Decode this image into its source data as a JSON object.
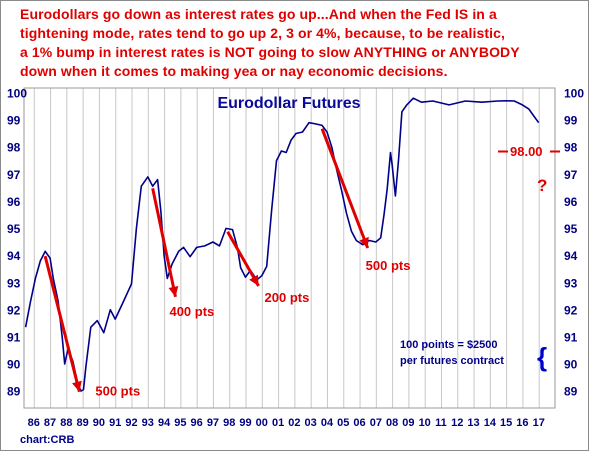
{
  "headline": [
    "Eurodollars go down as interest rates go up...And when the Fed IS in a",
    "tightening mode, rates tend to go up 2, 3 or 4%, because, to be realistic,",
    "a 1% bump in interest rates is NOT going to slow ANYTHING or ANYBODY",
    "down when it comes to making yea or nay economic decisions."
  ],
  "colors": {
    "headline": "#e00000",
    "series": "#00008b",
    "annotation": "#e00000",
    "grid": "#c8c8c8"
  },
  "chart_data": {
    "type": "line",
    "title": "Eurodollar Futures",
    "source": "chart:CRB",
    "xlabel": "",
    "ylabel": "",
    "xlim": [
      1985.4,
      2018.0
    ],
    "ylim": [
      88.4,
      100.2
    ],
    "grid": true,
    "x_tick_labels": [
      "86",
      "87",
      "88",
      "89",
      "90",
      "91",
      "92",
      "93",
      "94",
      "95",
      "96",
      "97",
      "98",
      "99",
      "00",
      "01",
      "02",
      "03",
      "04",
      "05",
      "06",
      "07",
      "08",
      "09",
      "10",
      "11",
      "12",
      "13",
      "14",
      "15",
      "16",
      "17"
    ],
    "x_tick_years": [
      1986,
      1987,
      1988,
      1989,
      1990,
      1991,
      1992,
      1993,
      1994,
      1995,
      1996,
      1997,
      1998,
      1999,
      2000,
      2001,
      2002,
      2003,
      2004,
      2005,
      2006,
      2007,
      2008,
      2009,
      2010,
      2011,
      2012,
      2013,
      2014,
      2015,
      2016,
      2017
    ],
    "y_ticks": [
      89,
      90,
      91,
      92,
      93,
      94,
      95,
      96,
      97,
      98,
      99,
      100
    ],
    "series": [
      {
        "x": [
          1985.5,
          1985.8,
          1986.1,
          1986.4,
          1986.7,
          1987.0,
          1987.2,
          1987.5,
          1987.75,
          1987.9,
          1988.1,
          1988.4,
          1988.7,
          1988.9,
          1989.05,
          1989.2,
          1989.5,
          1989.9,
          1990.3,
          1990.7,
          1991.0,
          1991.5,
          1992.0,
          1992.3,
          1992.6,
          1993.0,
          1993.3,
          1993.6,
          1993.8,
          1994.0,
          1994.2,
          1994.5,
          1994.9,
          1995.2,
          1995.6,
          1996.0,
          1996.5,
          1997.0,
          1997.4,
          1997.8,
          1998.2,
          1998.5,
          1998.7,
          1999.0,
          1999.3,
          1999.7,
          2000.0,
          2000.3,
          2000.6,
          2000.9,
          2001.2,
          2001.5,
          2001.8,
          2002.1,
          2002.5,
          2002.9,
          2003.3,
          2003.7,
          2004.0,
          2004.3,
          2004.6,
          2004.9,
          2005.2,
          2005.5,
          2005.8,
          2006.2,
          2006.6,
          2007.0,
          2007.3,
          2007.5,
          2007.7,
          2007.9,
          2008.0,
          2008.2,
          2008.4,
          2008.6,
          2008.9,
          2009.3,
          2009.8,
          2010.5,
          2011.5,
          2012.5,
          2013.5,
          2014.5,
          2015.0,
          2015.5,
          2016.0,
          2016.4,
          2016.8,
          2017.0
        ],
        "y": [
          91.4,
          92.3,
          93.2,
          93.8,
          94.2,
          93.9,
          93.2,
          92.3,
          91.0,
          90.0,
          90.6,
          90.1,
          89.3,
          89.0,
          89.1,
          89.9,
          91.4,
          91.6,
          91.2,
          92.0,
          91.7,
          92.3,
          93.0,
          95.0,
          96.6,
          96.9,
          96.6,
          96.8,
          95.7,
          94.0,
          93.2,
          93.7,
          94.2,
          94.3,
          94.0,
          94.3,
          94.4,
          94.5,
          94.4,
          95.0,
          95.0,
          94.3,
          93.6,
          93.2,
          93.5,
          93.1,
          93.3,
          93.6,
          95.7,
          97.5,
          97.9,
          97.8,
          98.3,
          98.5,
          98.6,
          98.9,
          98.9,
          98.8,
          98.6,
          98.0,
          97.2,
          96.4,
          95.6,
          94.9,
          94.6,
          94.4,
          94.6,
          94.5,
          94.7,
          95.5,
          96.5,
          97.8,
          97.4,
          96.2,
          97.6,
          99.3,
          99.6,
          99.8,
          99.7,
          99.7,
          99.6,
          99.7,
          99.7,
          99.7,
          99.75,
          99.7,
          99.6,
          99.4,
          99.1,
          98.9
        ]
      }
    ],
    "annotations": [
      {
        "text": "500 pts",
        "arrow_from": [
          1986.7,
          94.0
        ],
        "arrow_to": [
          1988.8,
          89.0
        ]
      },
      {
        "text": "400 pts",
        "arrow_from": [
          1993.3,
          96.5
        ],
        "arrow_to": [
          1994.7,
          92.5
        ]
      },
      {
        "text": "200 pts",
        "arrow_from": [
          1997.9,
          94.9
        ],
        "arrow_to": [
          1999.8,
          92.9
        ]
      },
      {
        "text": "500 pts",
        "arrow_from": [
          2003.7,
          98.7
        ],
        "arrow_to": [
          2006.5,
          94.3
        ]
      }
    ],
    "reference": {
      "label": "98.00",
      "value": 98.0,
      "question": "?"
    },
    "note": {
      "line1": "100 points = $2500",
      "line2": "per futures contract",
      "brace": "{"
    }
  }
}
